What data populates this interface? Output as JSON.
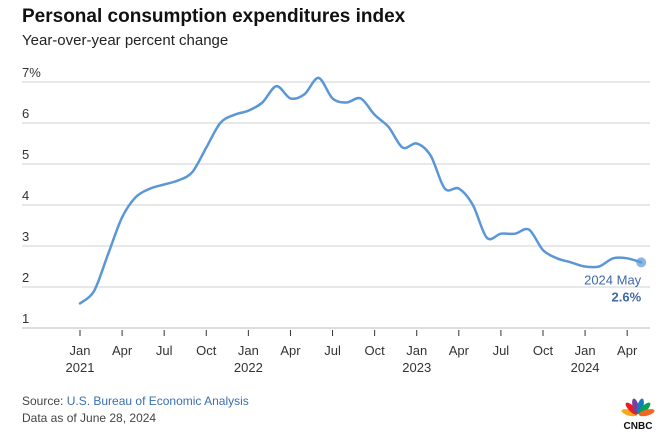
{
  "header": {
    "title": "Personal consumption expenditures index",
    "subtitle": "Year-over-year percent change"
  },
  "chart_data": {
    "type": "line",
    "title": "Personal consumption expenditures index",
    "subtitle": "Year-over-year percent change",
    "xlabel": "",
    "ylabel": "",
    "ylim": [
      1,
      7
    ],
    "y_ticks": [
      "1",
      "2",
      "3",
      "4",
      "5",
      "6",
      "7%"
    ],
    "x_ticks": [
      {
        "month": "Jan",
        "year": "2021",
        "date": "2021-01"
      },
      {
        "month": "Apr",
        "year": "",
        "date": "2021-04"
      },
      {
        "month": "Jul",
        "year": "",
        "date": "2021-07"
      },
      {
        "month": "Oct",
        "year": "",
        "date": "2021-10"
      },
      {
        "month": "Jan",
        "year": "2022",
        "date": "2022-01"
      },
      {
        "month": "Apr",
        "year": "",
        "date": "2022-04"
      },
      {
        "month": "Jul",
        "year": "",
        "date": "2022-07"
      },
      {
        "month": "Oct",
        "year": "",
        "date": "2022-10"
      },
      {
        "month": "Jan",
        "year": "2023",
        "date": "2023-01"
      },
      {
        "month": "Apr",
        "year": "",
        "date": "2023-04"
      },
      {
        "month": "Jul",
        "year": "",
        "date": "2023-07"
      },
      {
        "month": "Oct",
        "year": "",
        "date": "2023-10"
      },
      {
        "month": "Jan",
        "year": "2024",
        "date": "2024-01"
      },
      {
        "month": "Apr",
        "year": "",
        "date": "2024-04"
      }
    ],
    "grid": true,
    "series": [
      {
        "color": "#5b97d6",
        "x": [
          "2021-01",
          "2021-02",
          "2021-03",
          "2021-04",
          "2021-05",
          "2021-06",
          "2021-07",
          "2021-08",
          "2021-09",
          "2021-10",
          "2021-11",
          "2021-12",
          "2022-01",
          "2022-02",
          "2022-03",
          "2022-04",
          "2022-05",
          "2022-06",
          "2022-07",
          "2022-08",
          "2022-09",
          "2022-10",
          "2022-11",
          "2022-12",
          "2023-01",
          "2023-02",
          "2023-03",
          "2023-04",
          "2023-05",
          "2023-06",
          "2023-07",
          "2023-08",
          "2023-09",
          "2023-10",
          "2023-11",
          "2023-12",
          "2024-01",
          "2024-02",
          "2024-03",
          "2024-04",
          "2024-05"
        ],
        "values": [
          1.6,
          1.9,
          2.8,
          3.7,
          4.2,
          4.4,
          4.5,
          4.6,
          4.8,
          5.4,
          6.0,
          6.2,
          6.3,
          6.5,
          6.9,
          6.6,
          6.7,
          7.1,
          6.6,
          6.5,
          6.6,
          6.2,
          5.9,
          5.4,
          5.5,
          5.2,
          4.4,
          4.4,
          4.0,
          3.2,
          3.3,
          3.3,
          3.4,
          2.9,
          2.7,
          2.6,
          2.5,
          2.5,
          2.7,
          2.7,
          2.6
        ]
      }
    ],
    "annotation": {
      "label": "2024 May",
      "value": "2.6%"
    }
  },
  "footer": {
    "source_prefix": "Source: ",
    "source_link": "U.S. Bureau of Economic Analysis",
    "as_of": "Data as of June 28, 2024",
    "logo_text": "CNBC"
  },
  "colors": {
    "line": "#5b97d6",
    "annotation": "#3e68a8",
    "grid": "#d0d0d0"
  }
}
